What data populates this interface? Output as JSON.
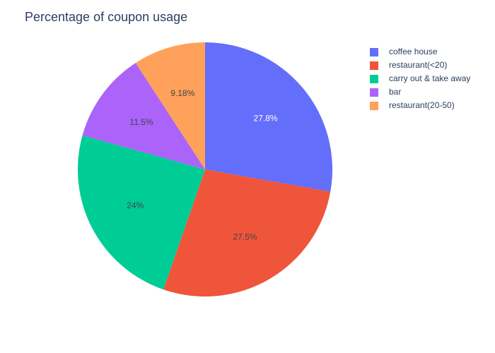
{
  "chart_data": {
    "type": "pie",
    "title": "Percentage of coupon usage",
    "categories": [
      "coffee house",
      "restaurant(<20)",
      "carry out & take away",
      "bar",
      "restaurant(20-50)"
    ],
    "values": [
      27.8,
      27.5,
      24,
      11.5,
      9.18
    ],
    "labels": [
      "27.8%",
      "27.5%",
      "24%",
      "11.5%",
      "9.18%"
    ],
    "colors": [
      "#636efa",
      "#ef553b",
      "#00cc96",
      "#ab63fa",
      "#ffa15a"
    ],
    "label_colors": [
      "#ffffff",
      "#444444",
      "#444444",
      "#444444",
      "#444444"
    ],
    "legend_order": [
      0,
      1,
      2,
      3,
      4
    ],
    "legend_position": "top-right",
    "direction": "clockwise",
    "start_angle_deg": 90
  }
}
